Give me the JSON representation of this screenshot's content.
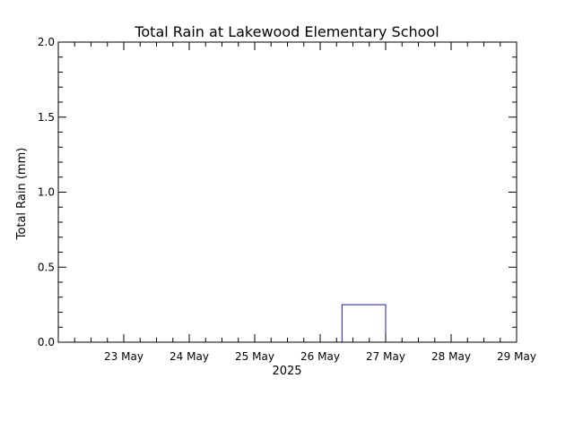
{
  "chart_data": {
    "type": "bar",
    "title": "Total Rain at Lakewood Elementary School",
    "ylabel": "Total Rain (mm)",
    "xlabel": "2025",
    "ylim": [
      0,
      2.0
    ],
    "y_ticks": [
      "0.0",
      "0.5",
      "1.0",
      "1.5",
      "2.0"
    ],
    "x_ticks": [
      "23 May",
      "24 May",
      "25 May",
      "26 May",
      "27 May",
      "28 May",
      "29 May"
    ],
    "x_range": [
      "2025-05-22T00:00",
      "2025-05-29T00:00"
    ],
    "bars": [
      {
        "start": "2025-05-26T08:00",
        "end": "2025-05-27T00:00",
        "value": 0.25
      }
    ],
    "colors": {
      "bar": "#1a1aa6",
      "axis": "#000000"
    },
    "grid": false,
    "legend": "none"
  }
}
